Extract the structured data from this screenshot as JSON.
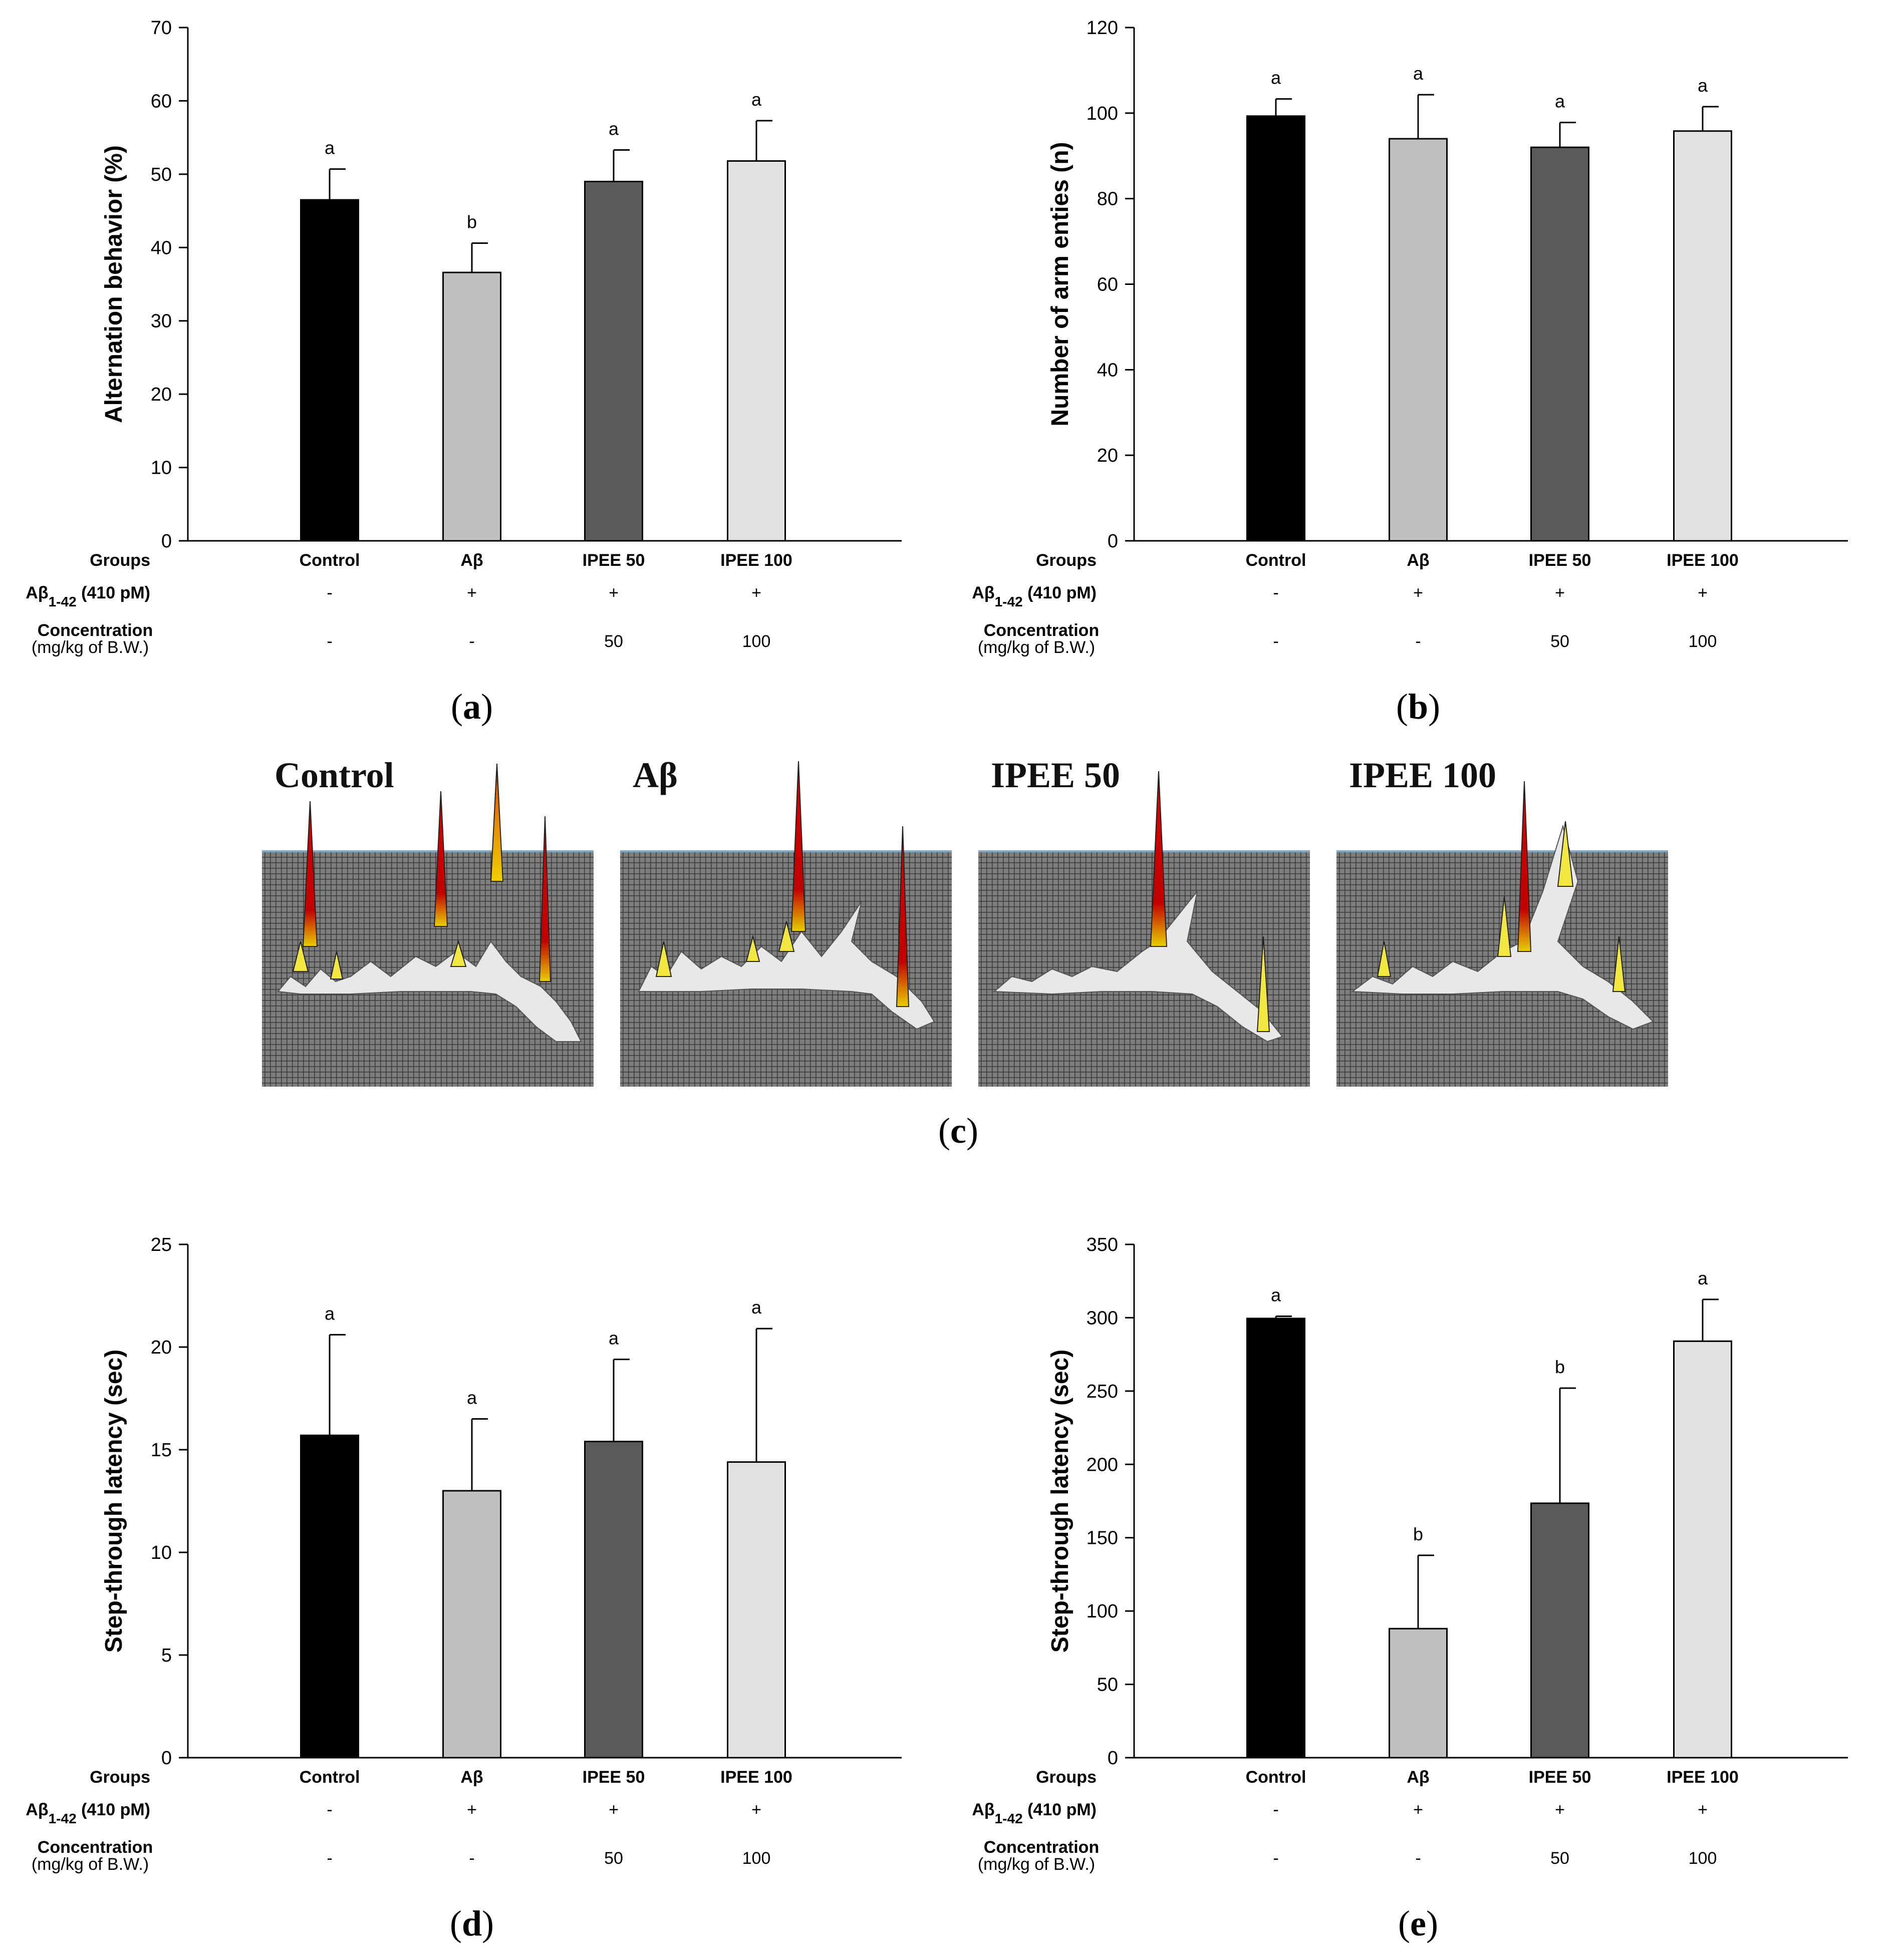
{
  "table": {
    "row_groups": "Groups",
    "row_abeta_main": "Aβ",
    "row_abeta_sub": "1-42",
    "row_abeta_rest": " (410 pM)",
    "row_conc": "Concentration",
    "row_conc_unit": "(mg/kg of B.W.)",
    "groups": [
      "Control",
      "Aβ",
      "IPEE 50",
      "IPEE 100"
    ],
    "abeta": [
      "-",
      "+",
      "+",
      "+"
    ],
    "conc": [
      "-",
      "-",
      "50",
      "100"
    ]
  },
  "chart_data": [
    {
      "type": "bar",
      "panel": "a",
      "caption": "a",
      "ylabel": "Alternation behavior (%)",
      "ylim": [
        0,
        70
      ],
      "yticks": [
        0,
        10,
        20,
        30,
        40,
        50,
        60,
        70
      ],
      "categories": [
        "Control",
        "Aβ",
        "IPEE 50",
        "IPEE 100"
      ],
      "values": [
        46.5,
        36.6,
        49,
        51.8
      ],
      "errors": [
        4.2,
        4,
        4.3,
        5.5
      ],
      "significance": [
        "a",
        "b",
        "a",
        "a"
      ],
      "colors": [
        "#000000",
        "#c0c0c0",
        "#5a5a5a",
        "#e2e2e2"
      ]
    },
    {
      "type": "bar",
      "panel": "b",
      "caption": "b",
      "ylabel": "Number of arm enties (n)",
      "ylim": [
        0,
        120
      ],
      "yticks": [
        0,
        20,
        40,
        60,
        80,
        100,
        120
      ],
      "categories": [
        "Control",
        "Aβ",
        "IPEE 50",
        "IPEE 100"
      ],
      "values": [
        99.3,
        94,
        92,
        95.8
      ],
      "errors": [
        4,
        10.3,
        5.8,
        5.7
      ],
      "significance": [
        "a",
        "a",
        "a",
        "a"
      ],
      "colors": [
        "#000000",
        "#c0c0c0",
        "#5a5a5a",
        "#e2e2e2"
      ]
    },
    {
      "type": "bar",
      "panel": "d",
      "caption": "d",
      "ylabel": "Step-through latency (sec)",
      "ylim": [
        0,
        25
      ],
      "yticks": [
        0,
        5,
        10,
        15,
        20,
        25
      ],
      "categories": [
        "Control",
        "Aβ",
        "IPEE 50",
        "IPEE 100"
      ],
      "values": [
        15.7,
        13,
        15.4,
        14.4
      ],
      "errors": [
        4.9,
        3.5,
        4,
        6.5
      ],
      "significance": [
        "a",
        "a",
        "a",
        "a"
      ],
      "colors": [
        "#000000",
        "#c0c0c0",
        "#5a5a5a",
        "#e2e2e2"
      ]
    },
    {
      "type": "bar",
      "panel": "e",
      "caption": "e",
      "ylabel": "Step-through latency (sec)",
      "ylim": [
        0,
        350
      ],
      "yticks": [
        0,
        50,
        100,
        150,
        200,
        250,
        300,
        350
      ],
      "categories": [
        "Control",
        "Aβ",
        "IPEE 50",
        "IPEE 100"
      ],
      "values": [
        299.5,
        88,
        173.5,
        284
      ],
      "errors": [
        1.5,
        50,
        78.5,
        28.5
      ],
      "significance": [
        "a",
        "b",
        "b",
        "a"
      ],
      "colors": [
        "#000000",
        "#c0c0c0",
        "#5a5a5a",
        "#e2e2e2"
      ]
    }
  ],
  "maps": {
    "caption": "c",
    "titles": [
      "Control",
      "Aβ",
      "IPEE 50",
      "IPEE 100"
    ]
  }
}
